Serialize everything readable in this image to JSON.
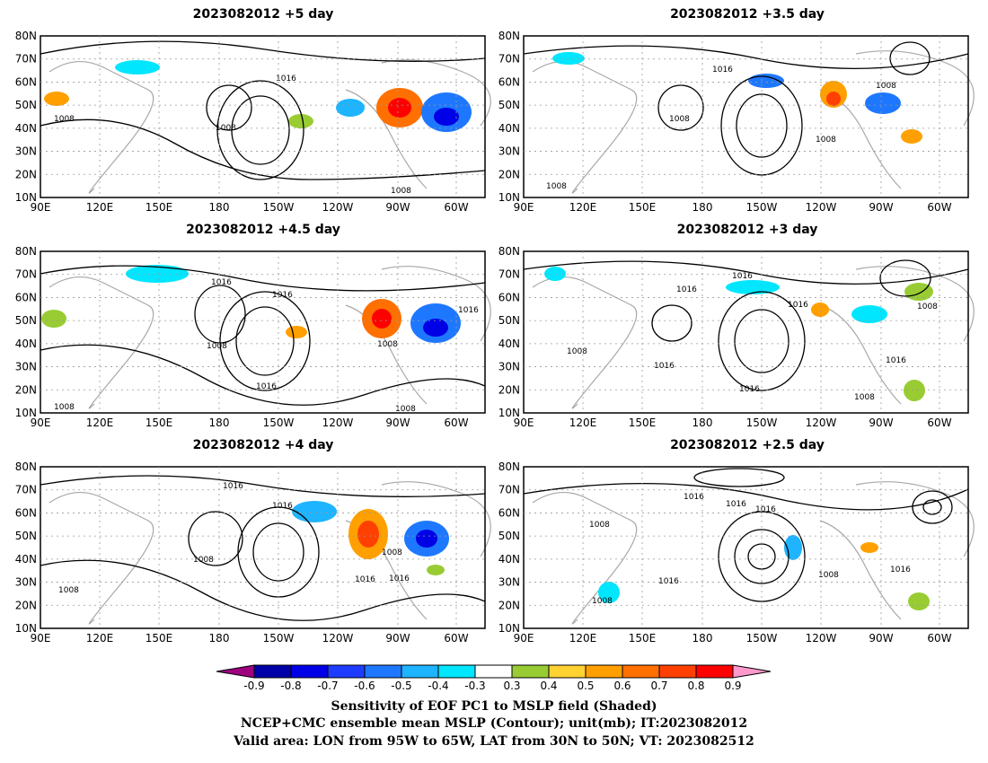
{
  "panels": [
    {
      "title": "2023082012 +5 day"
    },
    {
      "title": "2023082012 +3.5 day"
    },
    {
      "title": "2023082012 +4.5 day"
    },
    {
      "title": "2023082012 +3 day"
    },
    {
      "title": "2023082012 +4 day"
    },
    {
      "title": "2023082012 +2.5 day"
    }
  ],
  "lat_ticks": [
    "80N",
    "70N",
    "60N",
    "50N",
    "40N",
    "30N",
    "20N",
    "10N"
  ],
  "lon_ticks": [
    "90E",
    "120E",
    "150E",
    "180",
    "150W",
    "120W",
    "90W",
    "60W"
  ],
  "contour_label": "1008",
  "contour_label_alt": "1016",
  "colorbar": {
    "ticks": [
      "-0.9",
      "-0.8",
      "-0.7",
      "-0.6",
      "-0.5",
      "-0.4",
      "-0.3",
      "0.3",
      "0.4",
      "0.5",
      "0.6",
      "0.7",
      "0.8",
      "0.9"
    ],
    "colors": [
      "#9e0080",
      "#0000a8",
      "#0000e6",
      "#1e3cff",
      "#1e78ff",
      "#1eb4ff",
      "#00e6ff",
      "#ffffff",
      "#99cc33",
      "#ffd232",
      "#ffa000",
      "#ff7000",
      "#ff4000",
      "#ff0000",
      "#ff99cc"
    ]
  },
  "captions": [
    "Sensitivity of EOF PC1 to MSLP field (Shaded)",
    "NCEP+CMC ensemble mean MSLP (Contour); unit(mb); IT:2023082012",
    "Valid area: LON from 95W to 65W, LAT from 30N to 50N; VT: 2023082512"
  ]
}
